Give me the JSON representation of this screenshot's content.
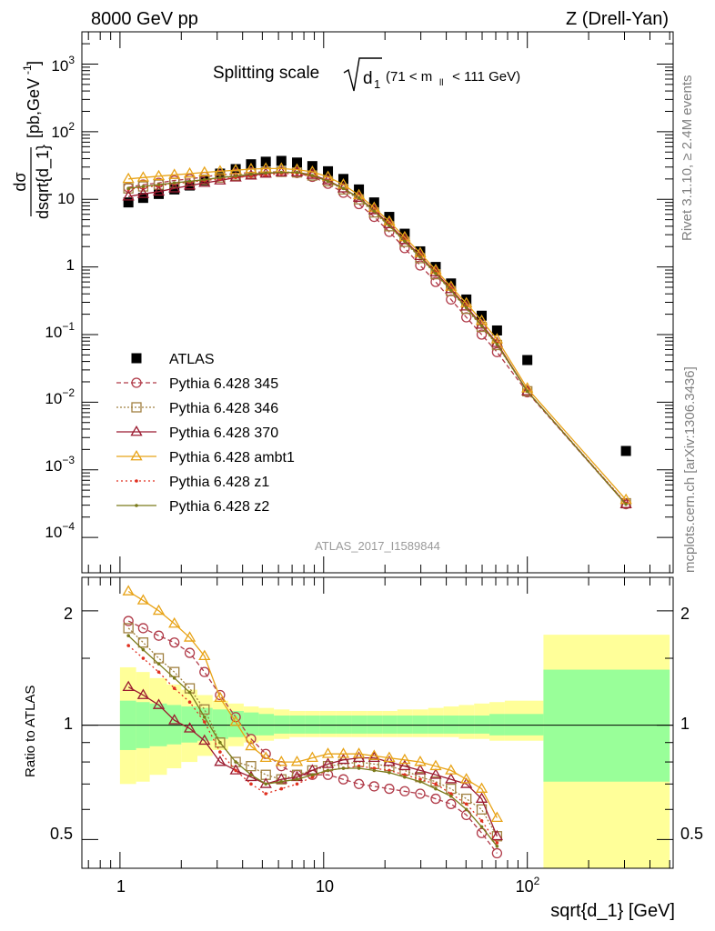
{
  "header": {
    "left": "8000 GeV pp",
    "right": "Z (Drell-Yan)"
  },
  "title": {
    "main": "Splitting scale",
    "radicand": "d",
    "radicand_sub": "1",
    "range_left": "(71 < m",
    "range_sub": "ll",
    "range_right": " < 111 GeV)"
  },
  "side_labels": {
    "rivet": "Rivet 3.1.10, ≥ 2.4M events",
    "mcplots": "mcplots.cern.ch [arXiv:1306.3436]"
  },
  "watermark": "ATLAS_2017_I1589844",
  "axes": {
    "ylabel_top_num": "dσ",
    "ylabel_top_den": "dsqrt{d_1}",
    "ylabel_top_unit": "[pb,GeV",
    "ylabel_top_unit_sup": "-1",
    "ylabel_top_unit_close": "]",
    "ylabel_ratio": "Ratio to ATLAS",
    "xlabel": "sqrt{d_1} [GeV]",
    "x_ticks": [
      "1",
      "10",
      "10"
    ],
    "x_tick_sup": "2",
    "y_top_ticks": [
      {
        "base": "10",
        "exp": "3"
      },
      {
        "base": "10",
        "exp": "2"
      },
      {
        "base": "10",
        "exp": ""
      },
      {
        "base": "1",
        "exp": ""
      },
      {
        "base": "10",
        "exp": "−1"
      },
      {
        "base": "10",
        "exp": "−2"
      },
      {
        "base": "10",
        "exp": "−3"
      },
      {
        "base": "10",
        "exp": "−4"
      }
    ],
    "y_ratio_ticks": [
      "2",
      "1",
      "0.5"
    ]
  },
  "legend": [
    {
      "label": "ATLAS",
      "color": "#000000",
      "marker": "square"
    },
    {
      "label": "Pythia 6.428 345",
      "color": "#b03a48",
      "marker": "circle"
    },
    {
      "label": "Pythia 6.428 346",
      "color": "#a08040",
      "marker": "square-open"
    },
    {
      "label": "Pythia 6.428 370",
      "color": "#9b1b30",
      "marker": "triangle"
    },
    {
      "label": "Pythia 6.428 ambt1",
      "color": "#e8a317",
      "marker": "triangle"
    },
    {
      "label": "Pythia 6.428 z1",
      "color": "#e03020",
      "marker": "dot"
    },
    {
      "label": "Pythia 6.428 z2",
      "color": "#7a7a1a",
      "marker": "dot"
    }
  ],
  "chart_data": [
    {
      "type": "scatter",
      "log_x": true,
      "log_y": true,
      "xlim": [
        0.65,
        520
      ],
      "ylim": [
        3e-05,
        3000
      ],
      "x": [
        1.1,
        1.3,
        1.55,
        1.85,
        2.2,
        2.6,
        3.1,
        3.7,
        4.4,
        5.2,
        6.2,
        7.4,
        8.8,
        10.5,
        12.5,
        14.9,
        17.7,
        21.0,
        25.0,
        29.8,
        35.5,
        42.2,
        50.2,
        59.7,
        71.0,
        100,
        305
      ],
      "series": [
        {
          "name": "ATLAS",
          "values": [
            9,
            10.5,
            12,
            14,
            16,
            19,
            24,
            28,
            33,
            36,
            37,
            35,
            31,
            26,
            20,
            14,
            9,
            5.5,
            3.1,
            1.7,
            1.0,
            0.57,
            0.33,
            0.19,
            0.115,
            0.042,
            0.0019
          ]
        },
        {
          "name": "Pythia 6.428 345",
          "values": [
            15,
            16.5,
            17.5,
            19,
            20,
            21.5,
            23,
            24,
            25,
            25.5,
            25.5,
            24.5,
            21.5,
            17,
            12.5,
            8.5,
            5.5,
            3.3,
            1.9,
            1.05,
            0.6,
            0.33,
            0.18,
            0.1,
            0.055,
            0.014,
            0.00031
          ]
        },
        {
          "name": "Pythia 6.428 346",
          "values": [
            14.5,
            15.5,
            16.5,
            17.5,
            18.5,
            19.5,
            21,
            22.5,
            24,
            25,
            25.5,
            25,
            22.5,
            18.5,
            14,
            10,
            6.4,
            4.0,
            2.35,
            1.35,
            0.78,
            0.44,
            0.24,
            0.13,
            0.07,
            0.0145,
            0.00032
          ]
        },
        {
          "name": "Pythia 6.428 370",
          "values": [
            11,
            12,
            13,
            14.5,
            16,
            17.5,
            19,
            21,
            22.5,
            24,
            25,
            25,
            23,
            19,
            14.5,
            10.5,
            6.9,
            4.3,
            2.5,
            1.45,
            0.83,
            0.47,
            0.26,
            0.14,
            0.075,
            0.0145,
            0.00031
          ]
        },
        {
          "name": "Pythia 6.428 ambt1",
          "values": [
            20,
            21,
            22,
            23,
            24,
            25,
            26,
            27,
            28,
            28.5,
            28.5,
            27.5,
            25.5,
            21.5,
            16.5,
            11.5,
            7.5,
            4.7,
            2.75,
            1.6,
            0.9,
            0.51,
            0.29,
            0.16,
            0.085,
            0.016,
            0.00036
          ]
        },
        {
          "name": "Pythia 6.428 z1",
          "values": [
            14,
            15,
            16,
            17,
            18,
            19,
            20,
            21,
            22,
            23,
            24,
            24,
            22,
            18.5,
            14.5,
            10.5,
            6.9,
            4.3,
            2.5,
            1.45,
            0.83,
            0.47,
            0.26,
            0.14,
            0.075,
            0.0145,
            0.00032
          ]
        },
        {
          "name": "Pythia 6.428 z2",
          "values": [
            14.5,
            15.5,
            16.5,
            17.5,
            18.5,
            19.5,
            21,
            22,
            23.5,
            24.5,
            25,
            25,
            22.5,
            18.5,
            14.5,
            10.5,
            6.7,
            4.1,
            2.4,
            1.4,
            0.8,
            0.45,
            0.25,
            0.135,
            0.072,
            0.0145,
            0.00031
          ]
        }
      ]
    },
    {
      "type": "line",
      "log_x": true,
      "log_y": true,
      "xlim": [
        0.65,
        520
      ],
      "ylim": [
        0.42,
        2.45
      ],
      "reference": 1,
      "x": [
        1.1,
        1.3,
        1.55,
        1.85,
        2.2,
        2.6,
        3.1,
        3.7,
        4.4,
        5.2,
        6.2,
        7.4,
        8.8,
        10.5,
        12.5,
        14.9,
        17.7,
        21.0,
        25.0,
        29.8,
        35.5,
        42.2,
        50.2,
        59.7,
        71.0
      ],
      "bands": {
        "bins": [
          1.0,
          1.2,
          1.4,
          1.7,
          2.0,
          2.4,
          2.85,
          3.4,
          4.05,
          4.8,
          5.7,
          6.8,
          8.1,
          9.6,
          11.5,
          13.7,
          16.3,
          19.4,
          23.0,
          27.4,
          32.6,
          38.8,
          46.1,
          54.8,
          65.2,
          77.5,
          120,
          500
        ],
        "inner_lo": [
          0.86,
          0.87,
          0.88,
          0.89,
          0.9,
          0.91,
          0.92,
          0.93,
          0.94,
          0.94,
          0.95,
          0.95,
          0.95,
          0.95,
          0.95,
          0.95,
          0.95,
          0.95,
          0.95,
          0.95,
          0.95,
          0.95,
          0.95,
          0.95,
          0.94,
          0.94,
          0.71
        ],
        "inner_hi": [
          1.16,
          1.15,
          1.14,
          1.13,
          1.12,
          1.11,
          1.1,
          1.09,
          1.08,
          1.07,
          1.06,
          1.06,
          1.06,
          1.06,
          1.06,
          1.06,
          1.06,
          1.06,
          1.06,
          1.06,
          1.06,
          1.06,
          1.06,
          1.06,
          1.07,
          1.07,
          1.4
        ],
        "outer_lo": [
          0.7,
          0.71,
          0.74,
          0.77,
          0.8,
          0.83,
          0.86,
          0.88,
          0.9,
          0.91,
          0.92,
          0.93,
          0.93,
          0.93,
          0.93,
          0.93,
          0.93,
          0.93,
          0.93,
          0.93,
          0.93,
          0.93,
          0.92,
          0.92,
          0.91,
          0.91,
          0.38
        ],
        "outer_hi": [
          1.42,
          1.38,
          1.33,
          1.28,
          1.24,
          1.2,
          1.16,
          1.14,
          1.12,
          1.11,
          1.1,
          1.09,
          1.09,
          1.09,
          1.09,
          1.09,
          1.09,
          1.09,
          1.1,
          1.1,
          1.11,
          1.12,
          1.13,
          1.14,
          1.15,
          1.16,
          1.73
        ]
      },
      "series": [
        {
          "name": "Pythia 6.428 345",
          "values": [
            1.88,
            1.8,
            1.72,
            1.65,
            1.55,
            1.38,
            1.2,
            1.05,
            0.92,
            0.84,
            0.78,
            0.74,
            0.74,
            0.74,
            0.72,
            0.7,
            0.69,
            0.68,
            0.67,
            0.66,
            0.64,
            0.62,
            0.58,
            0.52,
            0.46
          ]
        },
        {
          "name": "Pythia 6.428 346",
          "values": [
            1.8,
            1.65,
            1.5,
            1.38,
            1.25,
            1.1,
            0.9,
            0.8,
            0.78,
            0.74,
            0.72,
            0.74,
            0.76,
            0.78,
            0.79,
            0.8,
            0.79,
            0.78,
            0.76,
            0.73,
            0.71,
            0.68,
            0.64,
            0.6,
            0.51
          ]
        },
        {
          "name": "Pythia 6.428 370",
          "values": [
            1.26,
            1.2,
            1.13,
            1.03,
            0.98,
            0.91,
            0.8,
            0.76,
            0.73,
            0.7,
            0.72,
            0.73,
            0.76,
            0.79,
            0.81,
            0.82,
            0.82,
            0.8,
            0.78,
            0.76,
            0.74,
            0.72,
            0.7,
            0.64,
            0.51
          ]
        },
        {
          "name": "Pythia 6.428 ambt1",
          "values": [
            2.25,
            2.13,
            2.0,
            1.85,
            1.7,
            1.52,
            1.18,
            1.02,
            0.88,
            0.82,
            0.8,
            0.8,
            0.82,
            0.84,
            0.84,
            0.84,
            0.83,
            0.82,
            0.81,
            0.8,
            0.78,
            0.76,
            0.72,
            0.68,
            0.57
          ]
        },
        {
          "name": "Pythia 6.428 z1",
          "values": [
            1.62,
            1.5,
            1.38,
            1.25,
            1.15,
            1.02,
            0.85,
            0.76,
            0.7,
            0.66,
            0.68,
            0.7,
            0.73,
            0.76,
            0.77,
            0.78,
            0.77,
            0.76,
            0.74,
            0.72,
            0.7,
            0.66,
            0.62,
            0.56,
            0.49
          ]
        },
        {
          "name": "Pythia 6.428 z2",
          "values": [
            1.72,
            1.58,
            1.45,
            1.33,
            1.22,
            1.05,
            0.9,
            0.8,
            0.74,
            0.7,
            0.71,
            0.72,
            0.74,
            0.76,
            0.77,
            0.77,
            0.76,
            0.75,
            0.73,
            0.71,
            0.68,
            0.65,
            0.6,
            0.54,
            0.48
          ]
        }
      ]
    }
  ]
}
